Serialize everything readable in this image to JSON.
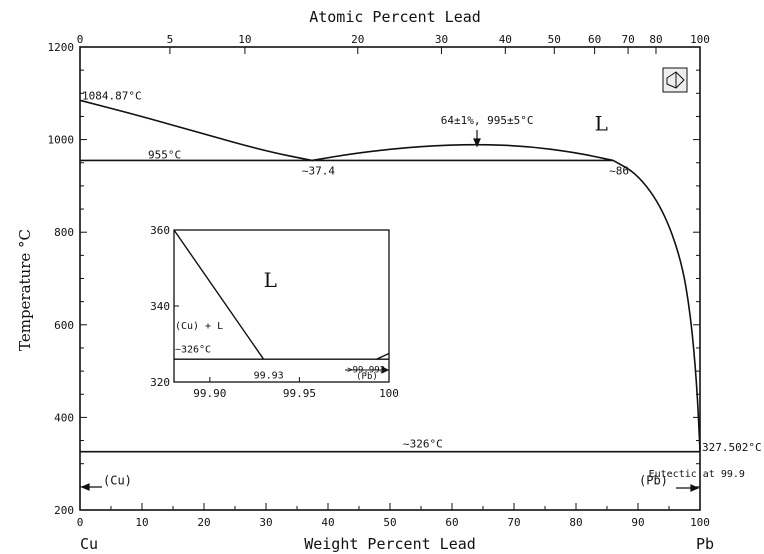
{
  "chart_data": {
    "type": "line",
    "title": "Atomic Percent Lead",
    "xlabel": "Weight Percent Lead",
    "ylabel": "Temperature °C",
    "xlim": [
      0,
      100
    ],
    "ylim": [
      200,
      1200
    ],
    "x_ticks": [
      0,
      10,
      20,
      30,
      40,
      50,
      60,
      70,
      80,
      90,
      100
    ],
    "y_ticks": [
      200,
      400,
      600,
      800,
      1000,
      1200
    ],
    "top_axis": {
      "label": "Atomic Percent Lead",
      "ticks": [
        {
          "label": "0",
          "wt": 0
        },
        {
          "label": "5",
          "wt": 14.5
        },
        {
          "label": "10",
          "wt": 26.6
        },
        {
          "label": "20",
          "wt": 44.8
        },
        {
          "label": "30",
          "wt": 58.3
        },
        {
          "label": "40",
          "wt": 68.6
        },
        {
          "label": "50",
          "wt": 76.5
        },
        {
          "label": "60",
          "wt": 83.0
        },
        {
          "label": "70",
          "wt": 88.4
        },
        {
          "label": "80",
          "wt": 92.9
        },
        {
          "label": "100",
          "wt": 100
        }
      ]
    },
    "element_left": "Cu",
    "element_right": "Pb",
    "series": [
      {
        "x": [
          0,
          10,
          20,
          30,
          37.4
        ],
        "y": [
          1084.87,
          1050,
          1012,
          975,
          955
        ]
      },
      {
        "x": [
          37.4,
          45,
          55,
          64,
          72,
          80,
          86
        ],
        "y": [
          955,
          972,
          986,
          990,
          986,
          972,
          955
        ]
      },
      {
        "x": [
          86,
          90,
          94,
          97,
          98.5,
          99.5,
          100
        ],
        "y": [
          955,
          925,
          850,
          740,
          620,
          470,
          327.5
        ]
      },
      {
        "x": [
          0,
          86
        ],
        "y": [
          955,
          955
        ]
      },
      {
        "x": [
          0,
          100
        ],
        "y": [
          326,
          326
        ]
      }
    ],
    "annotations": [
      {
        "text": "1084.87°C",
        "x": 0,
        "y": 1084.87
      },
      {
        "text": "955°C",
        "x": 10,
        "y": 955
      },
      {
        "text": "~37.4",
        "x": 37.4,
        "y": 955
      },
      {
        "text": "64±1%, 995±5°C",
        "x": 64,
        "y": 990
      },
      {
        "text": "~86",
        "x": 86,
        "y": 955
      },
      {
        "text": "L",
        "x": 83,
        "y": 1050
      },
      {
        "text": "~326°C",
        "x": 55,
        "y": 326
      },
      {
        "text": "327.502°C",
        "x": 100,
        "y": 327.5
      },
      {
        "text": "Eutectic at 99.9",
        "x": 93,
        "y": 310
      },
      {
        "text": "(Cu)",
        "x": 5,
        "y": 255
      },
      {
        "text": "(Pb)",
        "x": 95,
        "y": 255
      }
    ],
    "inset": {
      "xlim": [
        99.88,
        100
      ],
      "ylim": [
        320,
        360
      ],
      "x_ticks": [
        "99.90",
        "99.95",
        "100"
      ],
      "y_ticks": [
        "320",
        "340",
        "360"
      ],
      "series": [
        {
          "x": [
            99.88,
            99.93
          ],
          "y": [
            360,
            326
          ]
        },
        {
          "x": [
            99.88,
            100
          ],
          "y": [
            326,
            326
          ]
        },
        {
          "x": [
            99.993,
            100
          ],
          "y": [
            326,
            327.5
          ]
        }
      ],
      "annotations": [
        {
          "text": "L",
          "x": 99.93,
          "y": 345
        },
        {
          "text": "(Cu) + L",
          "x": 99.885,
          "y": 334
        },
        {
          "text": "~326°C",
          "x": 99.885,
          "y": 327
        },
        {
          "text": "99.93",
          "x": 99.93,
          "y": 322
        },
        {
          "text": ">99.993",
          "x": 99.98,
          "y": 322.5
        },
        {
          "text": "(Pb)",
          "x": 99.985,
          "y": 320.8
        }
      ]
    }
  }
}
